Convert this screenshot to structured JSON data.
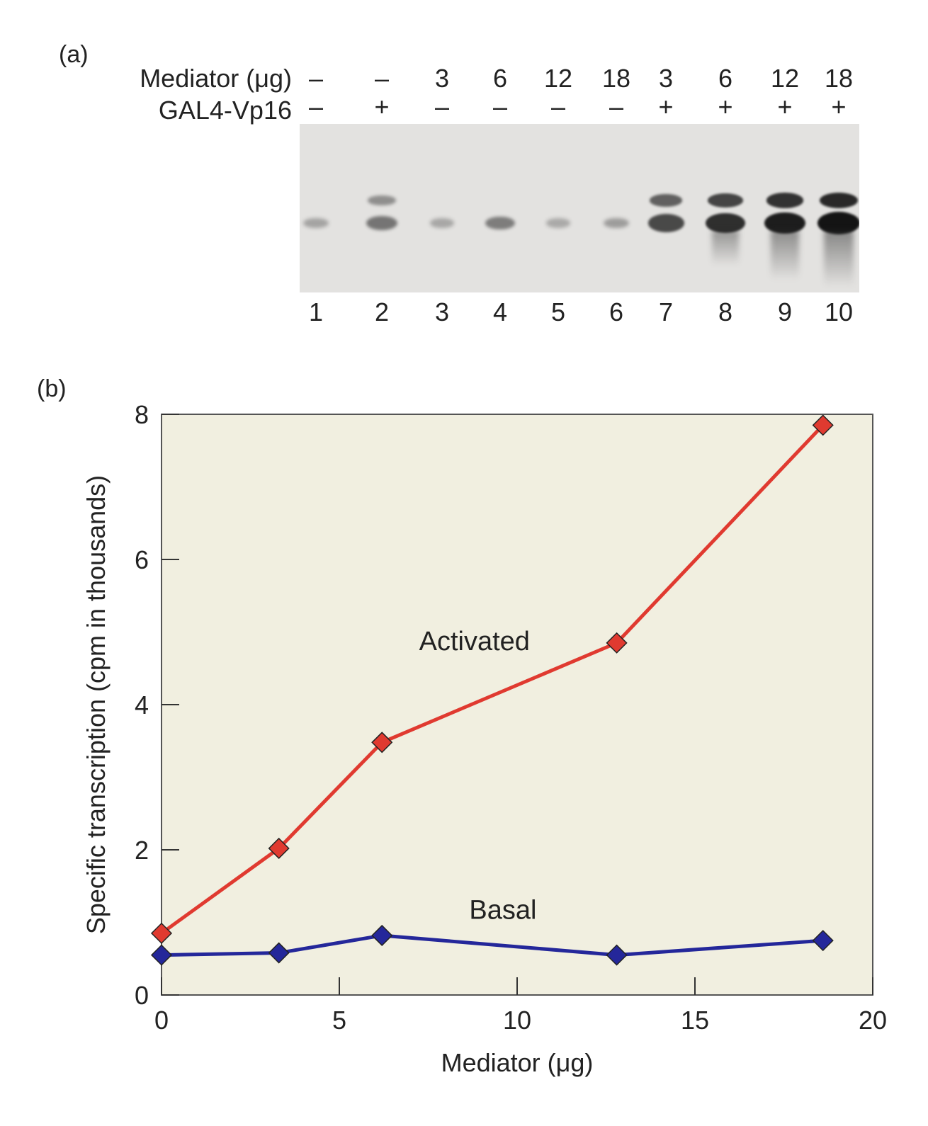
{
  "panel_a": {
    "label": "(a)",
    "row_labels": {
      "mediator": "Mediator  (μg)",
      "activator": "GAL4-Vp16"
    },
    "lanes": [
      {
        "mediator": "–",
        "activator": "–",
        "number": "1",
        "band_intensity": 0.18
      },
      {
        "mediator": "–",
        "activator": "+",
        "number": "2",
        "band_intensity": 0.45
      },
      {
        "mediator": "3",
        "activator": "–",
        "number": "3",
        "band_intensity": 0.16
      },
      {
        "mediator": "6",
        "activator": "–",
        "number": "4",
        "band_intensity": 0.4
      },
      {
        "mediator": "12",
        "activator": "–",
        "number": "5",
        "band_intensity": 0.14
      },
      {
        "mediator": "18",
        "activator": "–",
        "number": "6",
        "band_intensity": 0.22
      },
      {
        "mediator": "3",
        "activator": "+",
        "number": "7",
        "band_intensity": 0.7
      },
      {
        "mediator": "6",
        "activator": "+",
        "number": "8",
        "band_intensity": 0.85
      },
      {
        "mediator": "12",
        "activator": "+",
        "number": "9",
        "band_intensity": 0.95
      },
      {
        "mediator": "18",
        "activator": "+",
        "number": "10",
        "band_intensity": 1.0
      }
    ]
  },
  "panel_b": {
    "label": "(b)"
  },
  "chart_data": {
    "type": "line",
    "title": "",
    "xlabel": "Mediator (μg)",
    "ylabel": "Specific transcription (cpm in thousands)",
    "xlim": [
      0,
      20
    ],
    "ylim": [
      0,
      8
    ],
    "xticks": [
      0,
      5,
      10,
      15,
      20
    ],
    "yticks": [
      0,
      2,
      4,
      6,
      8
    ],
    "grid": false,
    "background": "#f1efe0",
    "series": [
      {
        "name": "Activated",
        "color": "#e03a30",
        "label_at": [
          8.8,
          4.75
        ],
        "x": [
          0,
          3.3,
          6.2,
          12.8,
          18.6
        ],
        "y": [
          0.85,
          2.02,
          3.48,
          4.85,
          7.85
        ]
      },
      {
        "name": "Basal",
        "color": "#24279a",
        "label_at": [
          9.6,
          1.05
        ],
        "x": [
          0,
          3.3,
          6.2,
          12.8,
          18.6
        ],
        "y": [
          0.55,
          0.58,
          0.82,
          0.55,
          0.75
        ]
      }
    ]
  }
}
